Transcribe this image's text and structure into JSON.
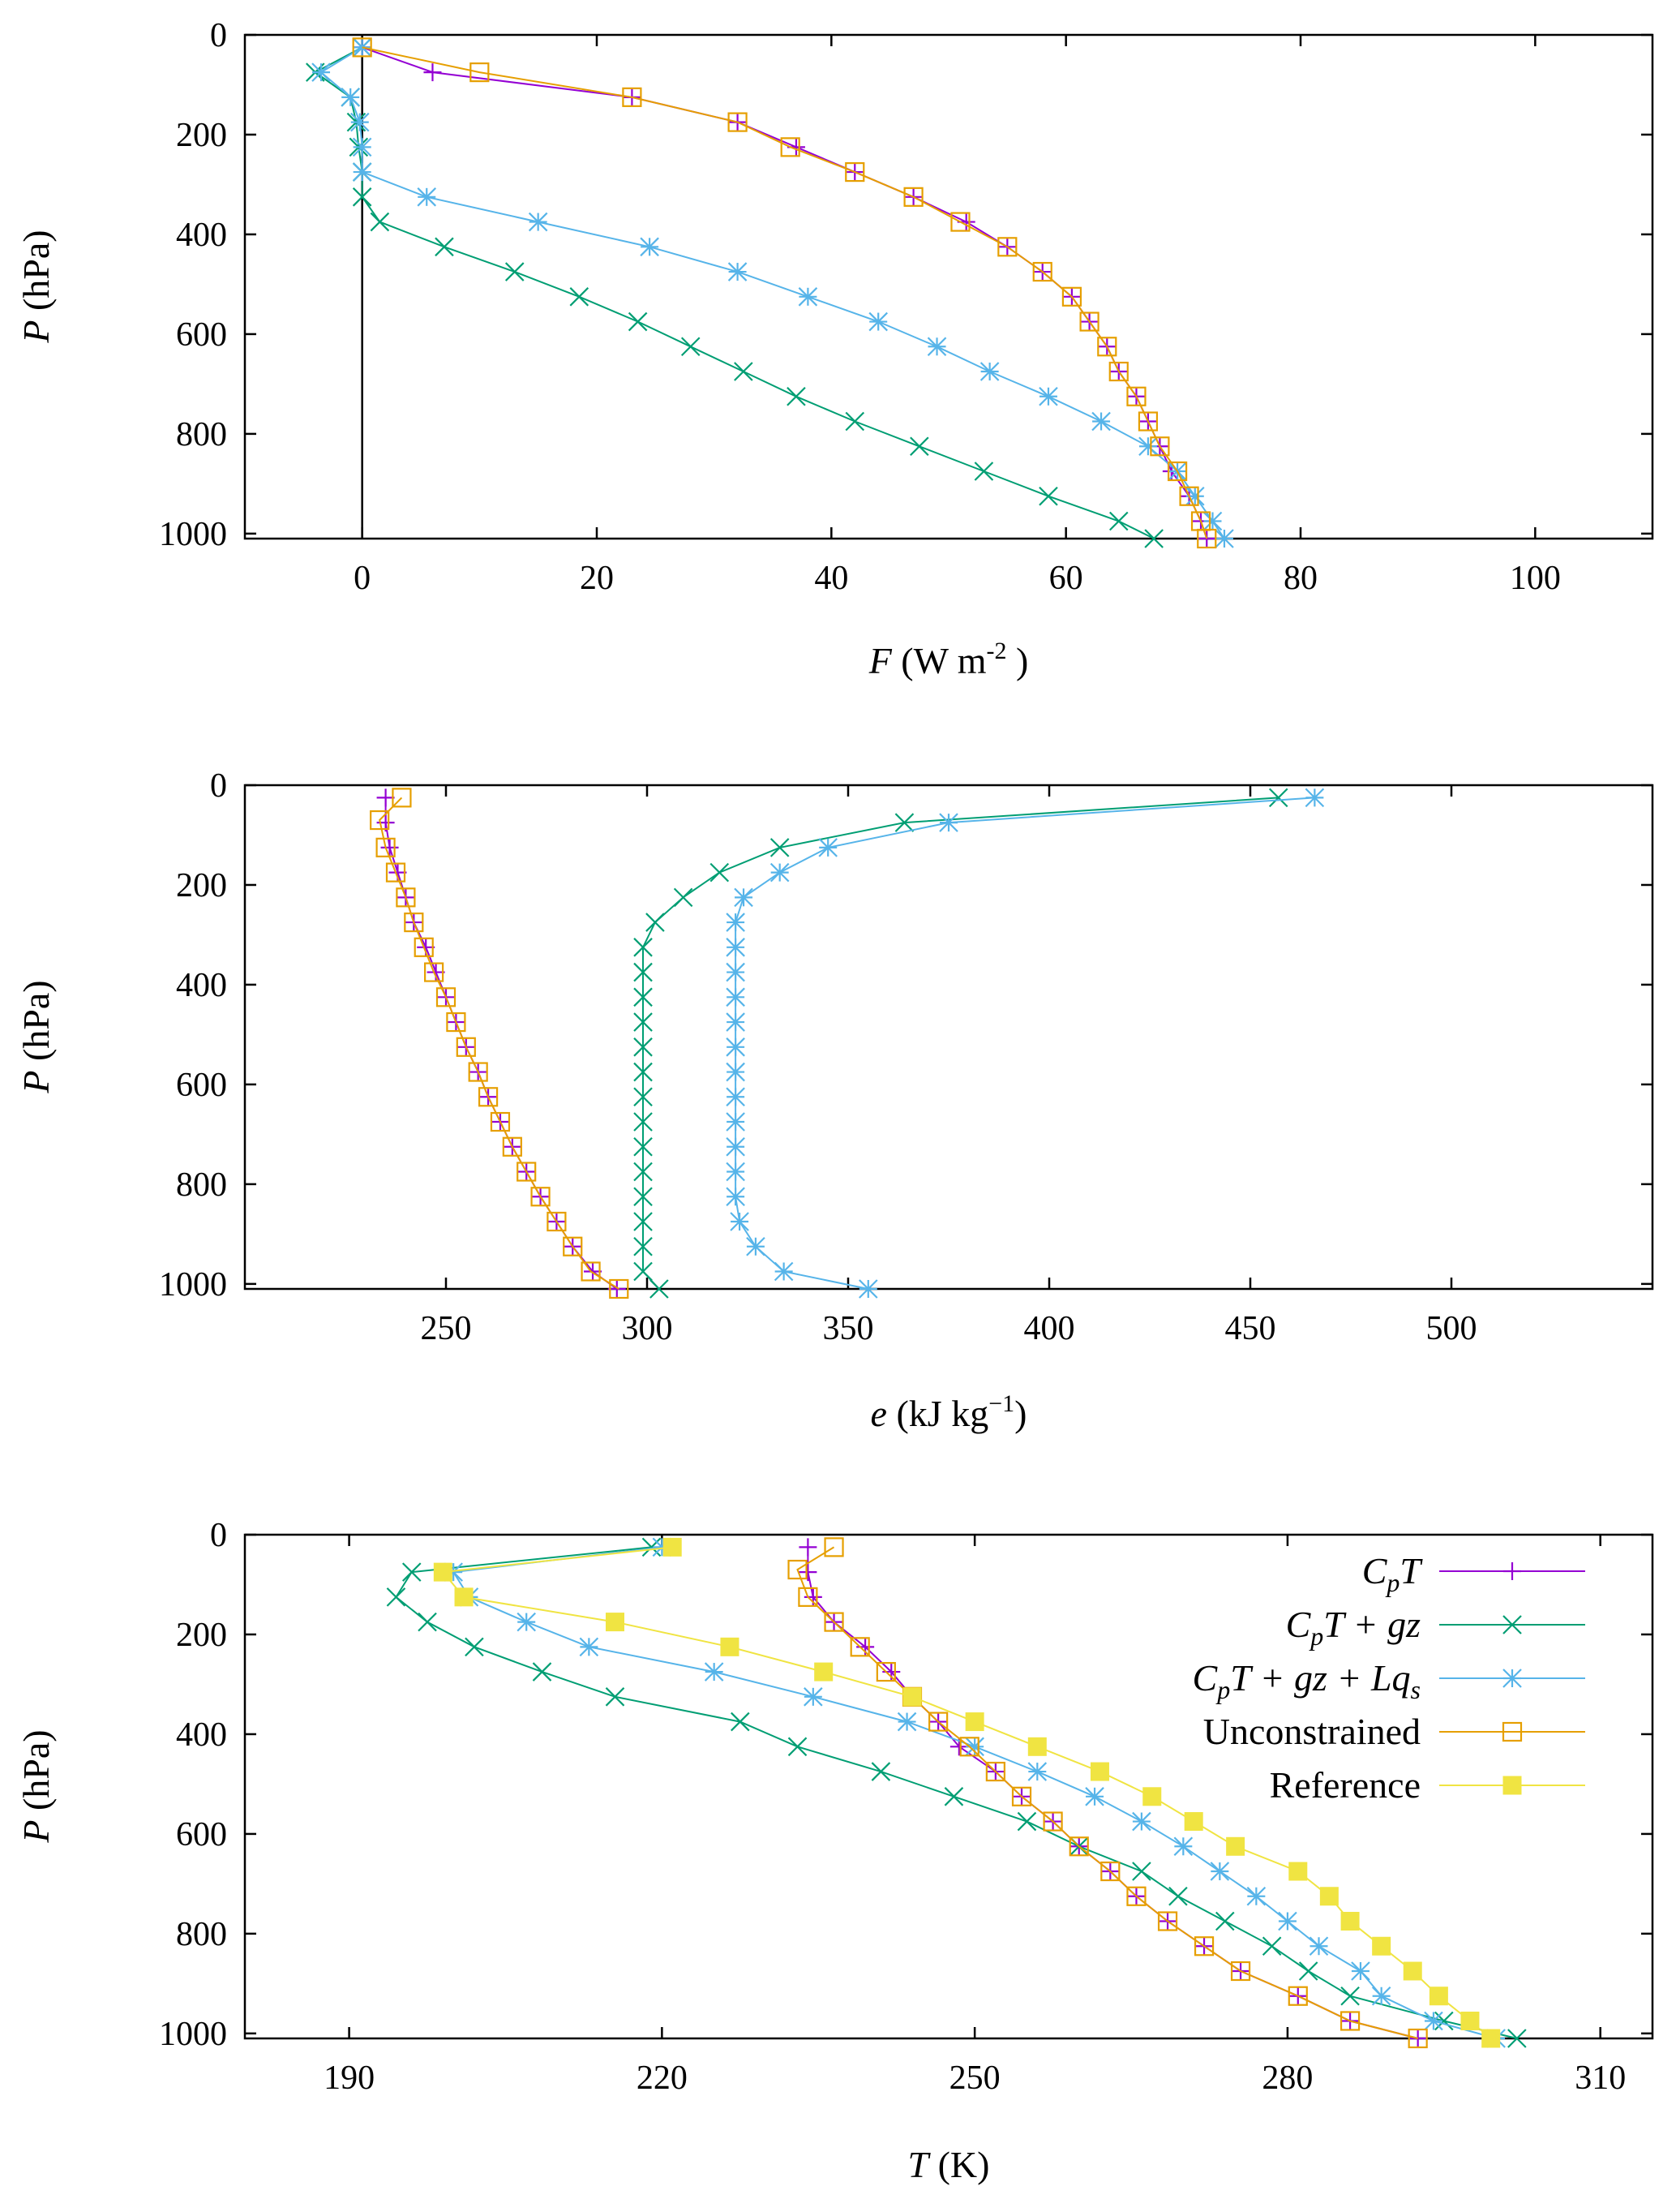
{
  "colors": {
    "CpT": "#9400d3",
    "CpT_gz": "#009e73",
    "CpT_gz_Lqs": "#56b4e9",
    "Unconstrained": "#e69f00",
    "Reference": "#f0e442"
  },
  "marker_icons": {
    "CpT": "plus-icon",
    "CpT_gz": "cross-icon",
    "CpT_gz_Lqs": "asterisk-icon",
    "Unconstrained": "open-square-icon",
    "Reference": "filled-square-icon"
  },
  "chart_data": [
    {
      "type": "line",
      "ylabel": "P (hPa)",
      "xlabel": "F (W m^-2)",
      "xlim": [
        -10,
        110
      ],
      "ylim": [
        1010,
        0
      ],
      "xticks": [
        0,
        20,
        40,
        60,
        80,
        100
      ],
      "xtick_labels": [
        "0",
        "20",
        "40",
        "60",
        "80",
        "100"
      ],
      "yticks": [
        0,
        200,
        400,
        600,
        800,
        1000
      ],
      "ytick_labels": [
        "0",
        "200",
        "400",
        "600",
        "800",
        "1000"
      ],
      "vline_x": 0,
      "series": [
        {
          "key": "CpT",
          "x": [
            0,
            6,
            23,
            32,
            37,
            42,
            47,
            51.5,
            55,
            58,
            60.5,
            62,
            63.5,
            64.5,
            66,
            67,
            68,
            69,
            70.5,
            71.5,
            72
          ],
          "y": [
            25,
            75,
            125,
            175,
            225,
            275,
            325,
            375,
            425,
            475,
            525,
            575,
            625,
            675,
            725,
            775,
            825,
            875,
            925,
            975,
            1010
          ]
        },
        {
          "key": "CpT_gz",
          "x": [
            0,
            -4,
            -1,
            -0.5,
            -0.3,
            0,
            0,
            1.5,
            7,
            13,
            18.5,
            23.5,
            28,
            32.5,
            37,
            42,
            47.5,
            53,
            58.5,
            64.5,
            67.5
          ],
          "y": [
            25,
            75,
            125,
            175,
            225,
            275,
            325,
            375,
            425,
            475,
            525,
            575,
            625,
            675,
            725,
            775,
            825,
            875,
            925,
            975,
            1010
          ]
        },
        {
          "key": "CpT_gz_Lqs",
          "x": [
            0,
            -3.5,
            -1,
            -0.2,
            0,
            0,
            5.5,
            15,
            24.5,
            32,
            38,
            44,
            49,
            53.5,
            58.5,
            63,
            67,
            69.5,
            71,
            72.5,
            73.5
          ],
          "y": [
            25,
            75,
            125,
            175,
            225,
            275,
            325,
            375,
            425,
            475,
            525,
            575,
            625,
            675,
            725,
            775,
            825,
            875,
            925,
            975,
            1010
          ]
        },
        {
          "key": "Unconstrained",
          "x": [
            0,
            10,
            23,
            32,
            36.5,
            42,
            47,
            51,
            55,
            58,
            60.5,
            62,
            63.5,
            64.5,
            66,
            67,
            68,
            69.5,
            70.5,
            71.5,
            72
          ],
          "y": [
            25,
            75,
            125,
            175,
            225,
            275,
            325,
            375,
            425,
            475,
            525,
            575,
            625,
            675,
            725,
            775,
            825,
            875,
            925,
            975,
            1010
          ]
        }
      ]
    },
    {
      "type": "line",
      "ylabel": "P (hPa)",
      "xlabel": "e (kJ kg^-1)",
      "xlim": [
        200,
        550
      ],
      "ylim": [
        1010,
        0
      ],
      "xticks": [
        250,
        300,
        350,
        400,
        450,
        500
      ],
      "xtick_labels": [
        "250",
        "300",
        "350",
        "400",
        "450",
        "500"
      ],
      "yticks": [
        0,
        200,
        400,
        600,
        800,
        1000
      ],
      "ytick_labels": [
        "0",
        "200",
        "400",
        "600",
        "800",
        "1000"
      ],
      "series": [
        {
          "key": "CpT",
          "x": [
            235,
            235,
            236,
            238,
            240,
            242,
            245,
            247.5,
            250,
            252.5,
            255,
            258,
            260.5,
            263.5,
            266.5,
            270,
            273.5,
            277.5,
            281.5,
            286.5,
            292.5
          ],
          "y": [
            25,
            75,
            125,
            175,
            225,
            275,
            325,
            375,
            425,
            475,
            525,
            575,
            625,
            675,
            725,
            775,
            825,
            875,
            925,
            975,
            1010
          ]
        },
        {
          "key": "CpT_gz",
          "x": [
            457,
            364,
            333,
            318,
            309,
            302,
            299,
            299,
            299,
            299,
            299,
            299,
            299,
            299,
            299,
            299,
            299,
            299,
            299,
            299,
            303
          ],
          "y": [
            25,
            75,
            125,
            175,
            225,
            275,
            325,
            375,
            425,
            475,
            525,
            575,
            625,
            675,
            725,
            775,
            825,
            875,
            925,
            975,
            1010
          ]
        },
        {
          "key": "CpT_gz_Lqs",
          "x": [
            466,
            375,
            345,
            333,
            324,
            322,
            322,
            322,
            322,
            322,
            322,
            322,
            322,
            322,
            322,
            322,
            322,
            323,
            327,
            334,
            355
          ],
          "y": [
            25,
            75,
            125,
            175,
            225,
            275,
            325,
            375,
            425,
            475,
            525,
            575,
            625,
            675,
            725,
            775,
            825,
            875,
            925,
            975,
            1010
          ]
        },
        {
          "key": "Unconstrained",
          "x": [
            239,
            233.5,
            235,
            237.5,
            240,
            242,
            244.5,
            247,
            250,
            252.5,
            255,
            258,
            260.5,
            263.5,
            266.5,
            270,
            273.5,
            277.5,
            281.5,
            286,
            293
          ],
          "y": [
            25,
            70,
            125,
            175,
            225,
            275,
            325,
            375,
            425,
            475,
            525,
            575,
            625,
            675,
            725,
            775,
            825,
            875,
            925,
            975,
            1010
          ]
        }
      ]
    },
    {
      "type": "line",
      "ylabel": "P (hPa)",
      "xlabel": "T (K)",
      "xlim": [
        180,
        315
      ],
      "ylim": [
        1010,
        0
      ],
      "xticks": [
        190,
        220,
        250,
        280,
        310
      ],
      "xtick_labels": [
        "190",
        "220",
        "250",
        "280",
        "310"
      ],
      "yticks": [
        0,
        200,
        400,
        600,
        800,
        1000
      ],
      "ytick_labels": [
        "0",
        "200",
        "400",
        "600",
        "800",
        "1000"
      ],
      "legend": {
        "position": "top-right",
        "entries": [
          {
            "key": "CpT",
            "label_main": "C",
            "label_sub": "p",
            "label_rest": "T"
          },
          {
            "key": "CpT_gz",
            "label_main": "C",
            "label_sub": "p",
            "label_rest": "T + gz"
          },
          {
            "key": "CpT_gz_Lqs",
            "label_main": "C",
            "label_sub": "p",
            "label_rest": "T + gz + Lq",
            "label_sub2": "s"
          },
          {
            "key": "Unconstrained",
            "label_plain": "Unconstrained"
          },
          {
            "key": "Reference",
            "label_plain": "Reference"
          }
        ]
      },
      "series": [
        {
          "key": "CpT",
          "x": [
            234,
            234,
            234.5,
            236.5,
            239.5,
            242,
            244,
            246.5,
            248.5,
            252,
            254.5,
            257.5,
            260,
            263,
            265.5,
            268.5,
            272,
            275.5,
            281,
            286,
            292.5
          ],
          "y": [
            25,
            75,
            125,
            175,
            225,
            275,
            325,
            375,
            425,
            475,
            525,
            575,
            625,
            675,
            725,
            775,
            825,
            875,
            925,
            975,
            1010
          ]
        },
        {
          "key": "CpT_gz",
          "x": [
            219,
            196,
            194.5,
            197.5,
            202,
            208.5,
            215.5,
            227.5,
            233,
            241,
            248,
            255,
            260,
            266,
            269.5,
            274,
            278.5,
            282,
            286,
            295,
            302
          ],
          "y": [
            25,
            75,
            125,
            175,
            225,
            275,
            325,
            375,
            425,
            475,
            525,
            575,
            625,
            675,
            725,
            775,
            825,
            875,
            925,
            975,
            1010
          ]
        },
        {
          "key": "CpT_gz_Lqs",
          "x": [
            220,
            200,
            201.5,
            207,
            213,
            225,
            234.5,
            243.5,
            250,
            256,
            261.5,
            266,
            270,
            273.5,
            277,
            280,
            283,
            287,
            289,
            294,
            300
          ],
          "y": [
            25,
            75,
            125,
            175,
            225,
            275,
            325,
            375,
            425,
            475,
            525,
            575,
            625,
            675,
            725,
            775,
            825,
            875,
            925,
            975,
            1010
          ]
        },
        {
          "key": "Unconstrained",
          "x": [
            236.5,
            233,
            234,
            236.5,
            239,
            241.5,
            244,
            246.5,
            249.5,
            252,
            254.5,
            257.5,
            260,
            263,
            265.5,
            268.5,
            272,
            275.5,
            281,
            286,
            292.5
          ],
          "y": [
            25,
            70,
            125,
            175,
            225,
            275,
            325,
            375,
            425,
            475,
            525,
            575,
            625,
            675,
            725,
            775,
            825,
            875,
            925,
            975,
            1010
          ]
        },
        {
          "key": "Reference",
          "x": [
            221,
            199,
            201,
            215.5,
            226.5,
            235.5,
            244,
            250,
            256,
            262,
            267,
            271,
            275,
            281,
            284,
            286,
            289,
            292,
            294.5,
            297.5,
            299.5
          ],
          "y": [
            25,
            75,
            125,
            175,
            225,
            275,
            325,
            375,
            425,
            475,
            525,
            575,
            625,
            675,
            725,
            775,
            825,
            875,
            925,
            975,
            1010
          ]
        }
      ]
    }
  ]
}
